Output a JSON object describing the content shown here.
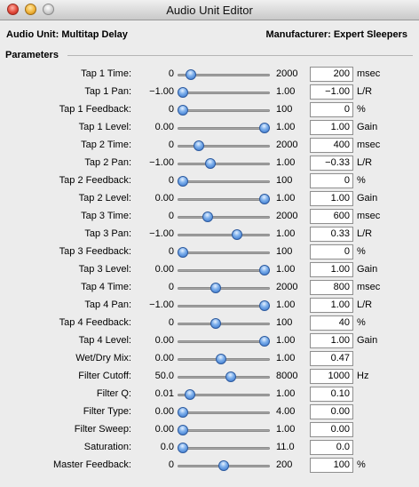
{
  "window": {
    "title": "Audio Unit Editor"
  },
  "header": {
    "audio_unit": "Audio Unit: Multitap Delay",
    "manufacturer": "Manufacturer: Expert Sleepers"
  },
  "section": {
    "label": "Parameters"
  },
  "parameters": [
    {
      "name": "Tap 1 Time:",
      "min": "0",
      "max": "2000",
      "value": "200",
      "unit": "msec",
      "fraction": 0.1
    },
    {
      "name": "Tap 1 Pan:",
      "min": "−1.00",
      "max": "1.00",
      "value": "−1.00",
      "unit": "L/R",
      "fraction": 0.0
    },
    {
      "name": "Tap 1 Feedback:",
      "min": "0",
      "max": "100",
      "value": "0",
      "unit": "%",
      "fraction": 0.0
    },
    {
      "name": "Tap 1 Level:",
      "min": "0.00",
      "max": "1.00",
      "value": "1.00",
      "unit": "Gain",
      "fraction": 1.0
    },
    {
      "name": "Tap 2 Time:",
      "min": "0",
      "max": "2000",
      "value": "400",
      "unit": "msec",
      "fraction": 0.2
    },
    {
      "name": "Tap 2 Pan:",
      "min": "−1.00",
      "max": "1.00",
      "value": "−0.33",
      "unit": "L/R",
      "fraction": 0.335
    },
    {
      "name": "Tap 2 Feedback:",
      "min": "0",
      "max": "100",
      "value": "0",
      "unit": "%",
      "fraction": 0.0
    },
    {
      "name": "Tap 2 Level:",
      "min": "0.00",
      "max": "1.00",
      "value": "1.00",
      "unit": "Gain",
      "fraction": 1.0
    },
    {
      "name": "Tap 3 Time:",
      "min": "0",
      "max": "2000",
      "value": "600",
      "unit": "msec",
      "fraction": 0.3
    },
    {
      "name": "Tap 3 Pan:",
      "min": "−1.00",
      "max": "1.00",
      "value": "0.33",
      "unit": "L/R",
      "fraction": 0.665
    },
    {
      "name": "Tap 3 Feedback:",
      "min": "0",
      "max": "100",
      "value": "0",
      "unit": "%",
      "fraction": 0.0
    },
    {
      "name": "Tap 3 Level:",
      "min": "0.00",
      "max": "1.00",
      "value": "1.00",
      "unit": "Gain",
      "fraction": 1.0
    },
    {
      "name": "Tap 4 Time:",
      "min": "0",
      "max": "2000",
      "value": "800",
      "unit": "msec",
      "fraction": 0.4
    },
    {
      "name": "Tap 4 Pan:",
      "min": "−1.00",
      "max": "1.00",
      "value": "1.00",
      "unit": "L/R",
      "fraction": 1.0
    },
    {
      "name": "Tap 4 Feedback:",
      "min": "0",
      "max": "100",
      "value": "40",
      "unit": "%",
      "fraction": 0.4
    },
    {
      "name": "Tap 4 Level:",
      "min": "0.00",
      "max": "1.00",
      "value": "1.00",
      "unit": "Gain",
      "fraction": 1.0
    },
    {
      "name": "Wet/Dry Mix:",
      "min": "0.00",
      "max": "1.00",
      "value": "0.47",
      "unit": "",
      "fraction": 0.47
    },
    {
      "name": "Filter Cutoff:",
      "min": "50.0",
      "max": "8000",
      "value": "1000",
      "unit": "Hz",
      "fraction": 0.59
    },
    {
      "name": "Filter Q:",
      "min": "0.01",
      "max": "1.00",
      "value": "0.10",
      "unit": "",
      "fraction": 0.09
    },
    {
      "name": "Filter Type:",
      "min": "0.00",
      "max": "4.00",
      "value": "0.00",
      "unit": "",
      "fraction": 0.0
    },
    {
      "name": "Filter Sweep:",
      "min": "0.00",
      "max": "1.00",
      "value": "0.00",
      "unit": "",
      "fraction": 0.0
    },
    {
      "name": "Saturation:",
      "min": "0.0",
      "max": "11.0",
      "value": "0.0",
      "unit": "",
      "fraction": 0.0
    },
    {
      "name": "Master Feedback:",
      "min": "0",
      "max": "200",
      "value": "100",
      "unit": "%",
      "fraction": 0.5
    }
  ]
}
